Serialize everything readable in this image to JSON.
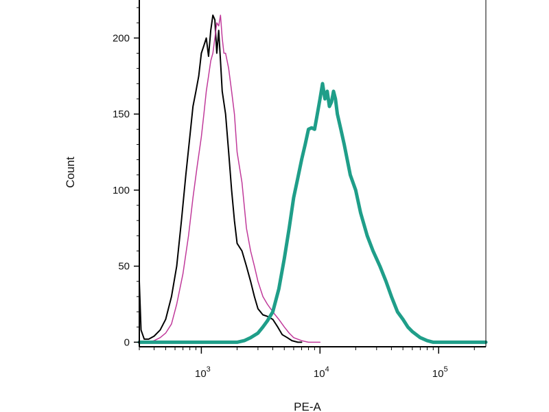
{
  "chart_data": {
    "type": "line",
    "title": "",
    "xlabel": "PE-A",
    "ylabel": "Count",
    "x_scale": "log",
    "xlim": [
      300,
      250000
    ],
    "ylim": [
      -3,
      225
    ],
    "grid": false,
    "y_ticks": [
      0,
      50,
      100,
      150,
      200
    ],
    "y_tick_labels": [
      "0",
      "50",
      "100",
      "150",
      "200"
    ],
    "x_ticks": [
      1000,
      10000,
      100000
    ],
    "x_tick_labels": [
      {
        "base": "10",
        "exp": "3"
      },
      {
        "base": "10",
        "exp": "4"
      },
      {
        "base": "10",
        "exp": "5"
      }
    ],
    "series": [
      {
        "color": "#000000",
        "stroke_width": 2,
        "x": [
          300,
          310,
          330,
          360,
          400,
          450,
          500,
          560,
          620,
          680,
          740,
          800,
          850,
          900,
          950,
          1000,
          1050,
          1100,
          1150,
          1200,
          1250,
          1300,
          1350,
          1400,
          1450,
          1500,
          1600,
          1700,
          1800,
          1900,
          2000,
          2200,
          2400,
          2600,
          2800,
          3000,
          3300,
          3600,
          4000,
          4400,
          4800,
          5300,
          5800,
          6500,
          7000
        ],
        "y": [
          40,
          8,
          2,
          2,
          4,
          8,
          15,
          30,
          50,
          80,
          110,
          135,
          155,
          165,
          175,
          190,
          195,
          200,
          188,
          205,
          215,
          212,
          190,
          205,
          185,
          165,
          150,
          125,
          100,
          80,
          65,
          60,
          50,
          40,
          30,
          22,
          18,
          17,
          15,
          10,
          5,
          3,
          1,
          0,
          0
        ]
      },
      {
        "color": "#c0399a",
        "stroke_width": 1.5,
        "x": [
          300,
          330,
          360,
          400,
          450,
          500,
          560,
          620,
          700,
          780,
          850,
          920,
          1000,
          1050,
          1100,
          1150,
          1200,
          1250,
          1300,
          1350,
          1400,
          1450,
          1500,
          1550,
          1600,
          1700,
          1800,
          1900,
          2000,
          2200,
          2400,
          2600,
          2800,
          3000,
          3300,
          3600,
          4000,
          4500,
          5000,
          5500,
          6000,
          7000,
          8000,
          9000,
          10000
        ],
        "y": [
          0,
          0,
          0,
          1,
          3,
          6,
          12,
          25,
          45,
          70,
          95,
          115,
          135,
          150,
          165,
          175,
          185,
          190,
          200,
          210,
          208,
          215,
          200,
          190,
          190,
          180,
          165,
          150,
          125,
          105,
          75,
          60,
          50,
          40,
          30,
          25,
          20,
          15,
          10,
          6,
          3,
          1,
          0,
          0,
          0
        ]
      },
      {
        "color": "#1f9e89",
        "stroke_width": 5,
        "x": [
          300,
          1000,
          2000,
          2300,
          2600,
          3000,
          3300,
          3600,
          4000,
          4500,
          5000,
          5500,
          6000,
          6500,
          7000,
          7500,
          8000,
          8500,
          9000,
          9500,
          10000,
          10500,
          11000,
          11500,
          12000,
          12500,
          13000,
          13500,
          14000,
          15000,
          16000,
          18000,
          20000,
          22000,
          25000,
          28000,
          32000,
          36000,
          40000,
          45000,
          50000,
          55000,
          60000,
          70000,
          80000,
          90000,
          100000,
          150000,
          250000
        ],
        "y": [
          0,
          0,
          0,
          1,
          3,
          6,
          10,
          14,
          20,
          35,
          55,
          75,
          95,
          108,
          120,
          130,
          140,
          141,
          140,
          150,
          160,
          170,
          160,
          165,
          155,
          158,
          165,
          160,
          150,
          140,
          130,
          110,
          100,
          85,
          70,
          60,
          50,
          40,
          30,
          20,
          15,
          10,
          7,
          3,
          1,
          0,
          0,
          0,
          0
        ]
      }
    ]
  }
}
